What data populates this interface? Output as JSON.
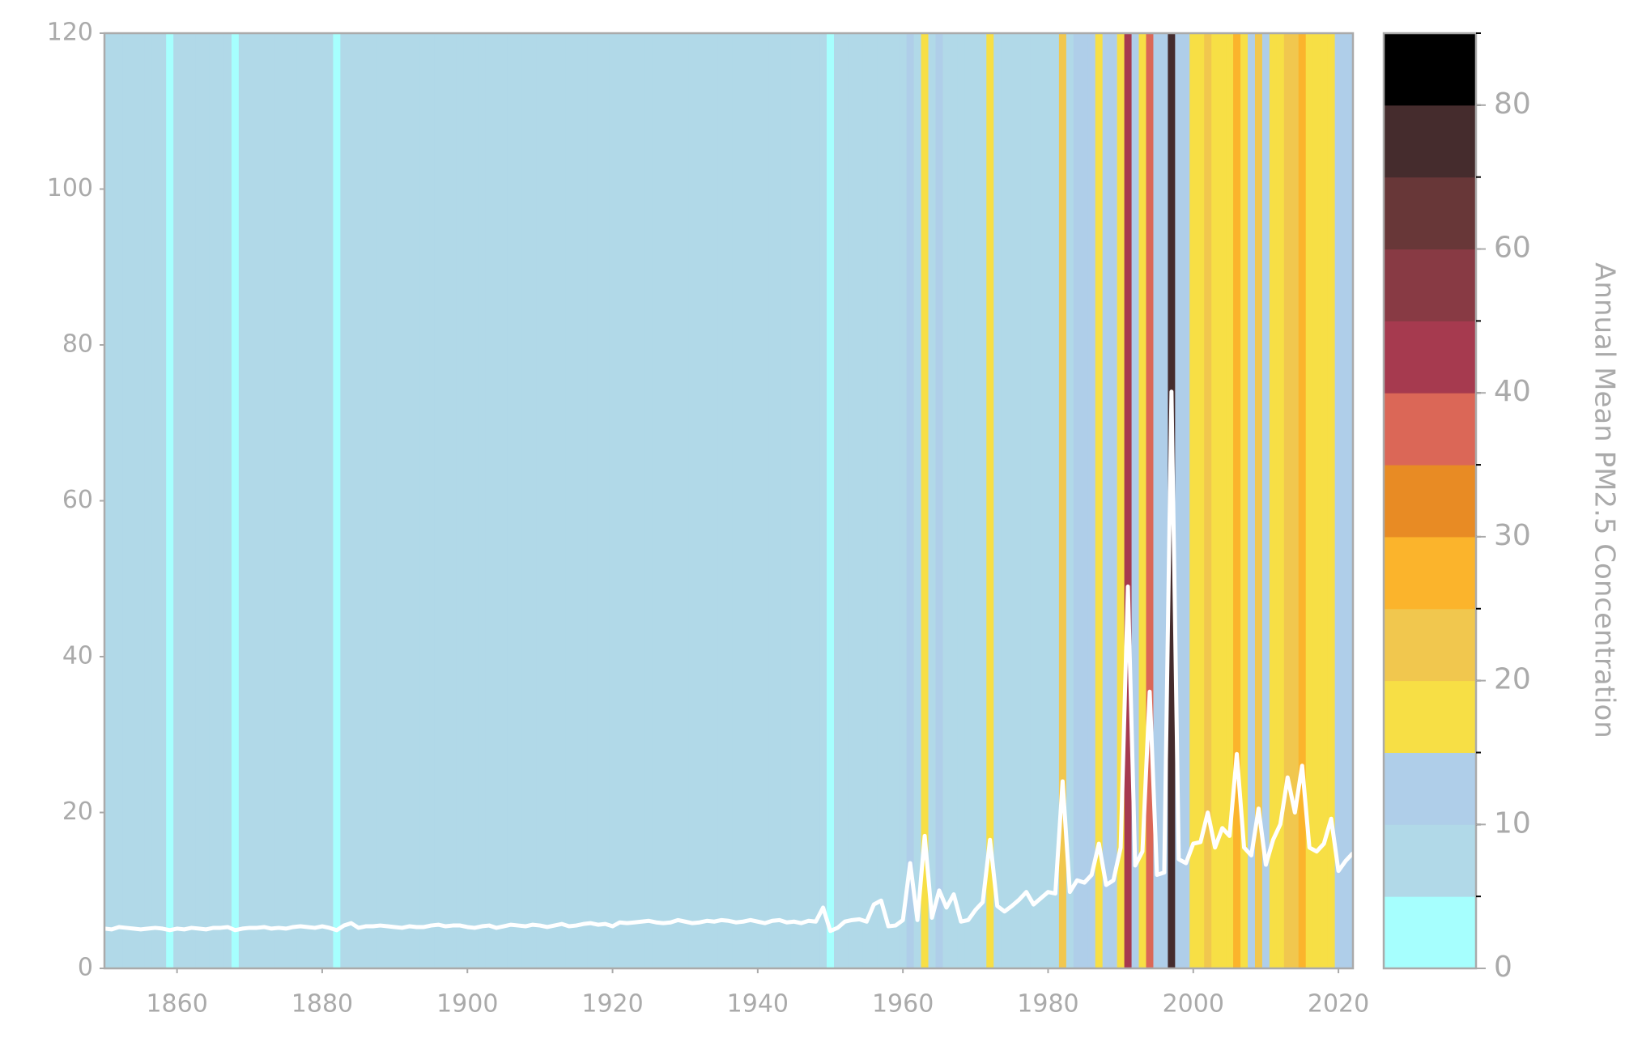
{
  "chart_data": {
    "type": "line",
    "x": [
      1850,
      1851,
      1852,
      1853,
      1854,
      1855,
      1856,
      1857,
      1858,
      1859,
      1860,
      1861,
      1862,
      1863,
      1864,
      1865,
      1866,
      1867,
      1868,
      1869,
      1870,
      1871,
      1872,
      1873,
      1874,
      1875,
      1876,
      1877,
      1878,
      1879,
      1880,
      1881,
      1882,
      1883,
      1884,
      1885,
      1886,
      1887,
      1888,
      1889,
      1890,
      1891,
      1892,
      1893,
      1894,
      1895,
      1896,
      1897,
      1898,
      1899,
      1900,
      1901,
      1902,
      1903,
      1904,
      1905,
      1906,
      1907,
      1908,
      1909,
      1910,
      1911,
      1912,
      1913,
      1914,
      1915,
      1916,
      1917,
      1918,
      1919,
      1920,
      1921,
      1922,
      1923,
      1924,
      1925,
      1926,
      1927,
      1928,
      1929,
      1930,
      1931,
      1932,
      1933,
      1934,
      1935,
      1936,
      1937,
      1938,
      1939,
      1940,
      1941,
      1942,
      1943,
      1944,
      1945,
      1946,
      1947,
      1948,
      1949,
      1950,
      1951,
      1952,
      1953,
      1954,
      1955,
      1956,
      1957,
      1958,
      1959,
      1960,
      1961,
      1962,
      1963,
      1964,
      1965,
      1966,
      1967,
      1968,
      1969,
      1970,
      1971,
      1972,
      1973,
      1974,
      1975,
      1976,
      1977,
      1978,
      1979,
      1980,
      1981,
      1982,
      1983,
      1984,
      1985,
      1986,
      1987,
      1988,
      1989,
      1990,
      1991,
      1992,
      1993,
      1994,
      1995,
      1996,
      1997,
      1998,
      1999,
      2000,
      2001,
      2002,
      2003,
      2004,
      2005,
      2006,
      2007,
      2008,
      2009,
      2010,
      2011,
      2012,
      2013,
      2014,
      2015,
      2016,
      2017,
      2018,
      2019,
      2020,
      2021,
      2022
    ],
    "values": [
      5.1,
      5.0,
      5.3,
      5.2,
      5.1,
      5.0,
      5.1,
      5.2,
      5.1,
      4.9,
      5.1,
      5.0,
      5.2,
      5.1,
      5.0,
      5.2,
      5.2,
      5.3,
      4.9,
      5.1,
      5.2,
      5.2,
      5.3,
      5.1,
      5.2,
      5.1,
      5.3,
      5.4,
      5.3,
      5.2,
      5.4,
      5.2,
      4.9,
      5.5,
      5.8,
      5.2,
      5.4,
      5.4,
      5.5,
      5.4,
      5.3,
      5.2,
      5.4,
      5.3,
      5.3,
      5.5,
      5.6,
      5.4,
      5.5,
      5.5,
      5.3,
      5.2,
      5.4,
      5.5,
      5.2,
      5.4,
      5.6,
      5.5,
      5.4,
      5.6,
      5.5,
      5.3,
      5.5,
      5.7,
      5.4,
      5.5,
      5.7,
      5.8,
      5.6,
      5.7,
      5.4,
      5.9,
      5.8,
      5.9,
      6.0,
      6.1,
      5.9,
      5.8,
      5.9,
      6.2,
      6.0,
      5.8,
      5.9,
      6.1,
      6.0,
      6.2,
      6.1,
      5.9,
      6.0,
      6.2,
      6.0,
      5.8,
      6.1,
      6.2,
      5.9,
      6.0,
      5.8,
      6.1,
      6.0,
      7.8,
      4.8,
      5.2,
      6.0,
      6.2,
      6.3,
      6.0,
      8.2,
      8.7,
      5.4,
      5.5,
      6.2,
      13.5,
      6.2,
      17,
      6.5,
      10,
      7.8,
      9.5,
      6.0,
      6.2,
      7.5,
      8.5,
      16.5,
      8.0,
      7.3,
      8.0,
      8.8,
      9.8,
      8.2,
      9.0,
      9.8,
      9.6,
      24,
      9.8,
      11.3,
      11,
      12,
      16,
      10.7,
      11.3,
      15.5,
      49,
      13.2,
      15,
      35.5,
      12.0,
      12.3,
      74,
      14,
      13.5,
      16,
      16.2,
      20,
      15.5,
      18,
      17,
      27.5,
      15.5,
      14.5,
      20.5,
      13.3,
      16.5,
      18.5,
      24.5,
      20,
      26,
      15.5,
      15,
      16,
      19.2,
      12.5,
      13.8,
      14.8
    ],
    "color": "#ffffff",
    "stripes": true,
    "xlim": [
      1850,
      2022
    ],
    "xticks": [
      1860,
      1880,
      1900,
      1920,
      1940,
      1960,
      1980,
      2000,
      2020
    ],
    "ylim": [
      0,
      120
    ],
    "yticks": [
      0,
      20,
      40,
      60,
      80,
      100,
      120
    ],
    "colorbar": {
      "label": "Annual Mean PM2.5 Concentration",
      "bounds": [
        0,
        5,
        10,
        15,
        20,
        25,
        30,
        35,
        40,
        50,
        60,
        70,
        80,
        90
      ],
      "colors": [
        "#a6fffe",
        "#b1d9e8",
        "#afcee9",
        "#f7df45",
        "#f1c74e",
        "#fbb42c",
        "#e88b24",
        "#db6757",
        "#a63a4f",
        "#883a44",
        "#683738",
        "#452c2d",
        "#000000"
      ],
      "ticks": [
        0,
        10,
        20,
        30,
        40,
        60,
        80
      ]
    }
  }
}
